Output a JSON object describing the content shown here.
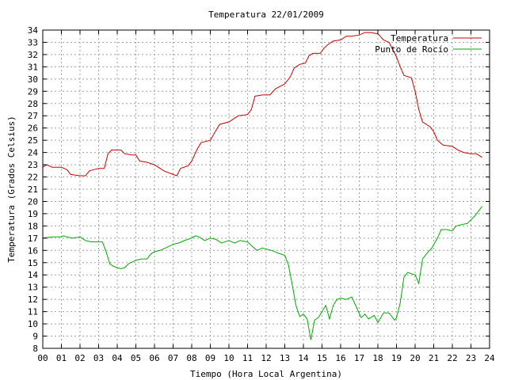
{
  "chart_data": {
    "type": "line",
    "title": "Temperatura 22/01/2009",
    "xlabel": "Tiempo (Hora Local Argentina)",
    "ylabel": "Temperatura (Grados Celsius)",
    "xlim": [
      0,
      24
    ],
    "ylim": [
      8,
      34
    ],
    "x_ticks": [
      "00",
      "01",
      "02",
      "03",
      "04",
      "05",
      "06",
      "07",
      "08",
      "09",
      "10",
      "11",
      "12",
      "13",
      "14",
      "15",
      "16",
      "17",
      "18",
      "19",
      "20",
      "21",
      "22",
      "23",
      "24"
    ],
    "y_ticks": [
      "8",
      "9",
      "10",
      "11",
      "12",
      "13",
      "14",
      "15",
      "16",
      "17",
      "18",
      "19",
      "20",
      "21",
      "22",
      "23",
      "24",
      "25",
      "26",
      "27",
      "28",
      "29",
      "30",
      "31",
      "32",
      "33",
      "34"
    ],
    "grid": true,
    "legend_position": "top-right",
    "series": [
      {
        "name": "Temperatura",
        "color": "#cc0000",
        "points": [
          [
            0.0,
            22.8
          ],
          [
            0.2,
            23.0
          ],
          [
            0.5,
            22.8
          ],
          [
            1.0,
            22.8
          ],
          [
            1.3,
            22.6
          ],
          [
            1.5,
            22.2
          ],
          [
            2.0,
            22.1
          ],
          [
            2.3,
            22.1
          ],
          [
            2.5,
            22.5
          ],
          [
            3.0,
            22.7
          ],
          [
            3.3,
            22.7
          ],
          [
            3.5,
            23.9
          ],
          [
            3.7,
            24.2
          ],
          [
            4.0,
            24.2
          ],
          [
            4.2,
            24.2
          ],
          [
            4.4,
            23.9
          ],
          [
            4.8,
            23.8
          ],
          [
            5.0,
            23.8
          ],
          [
            5.2,
            23.3
          ],
          [
            5.6,
            23.2
          ],
          [
            6.0,
            23.0
          ],
          [
            6.2,
            22.8
          ],
          [
            6.5,
            22.5
          ],
          [
            7.0,
            22.2
          ],
          [
            7.2,
            22.1
          ],
          [
            7.4,
            22.7
          ],
          [
            7.8,
            22.9
          ],
          [
            8.0,
            23.3
          ],
          [
            8.3,
            24.3
          ],
          [
            8.5,
            24.8
          ],
          [
            9.0,
            25.0
          ],
          [
            9.3,
            25.8
          ],
          [
            9.5,
            26.3
          ],
          [
            10.0,
            26.5
          ],
          [
            10.3,
            26.8
          ],
          [
            10.5,
            27.0
          ],
          [
            11.0,
            27.1
          ],
          [
            11.2,
            27.5
          ],
          [
            11.4,
            28.6
          ],
          [
            11.8,
            28.7
          ],
          [
            12.2,
            28.7
          ],
          [
            12.5,
            29.2
          ],
          [
            13.0,
            29.6
          ],
          [
            13.3,
            30.2
          ],
          [
            13.5,
            30.9
          ],
          [
            13.8,
            31.2
          ],
          [
            14.1,
            31.3
          ],
          [
            14.3,
            31.9
          ],
          [
            14.5,
            32.1
          ],
          [
            14.9,
            32.1
          ],
          [
            15.1,
            32.5
          ],
          [
            15.3,
            32.8
          ],
          [
            15.6,
            33.1
          ],
          [
            16.0,
            33.2
          ],
          [
            16.3,
            33.5
          ],
          [
            16.6,
            33.5
          ],
          [
            17.0,
            33.6
          ],
          [
            17.3,
            33.8
          ],
          [
            17.6,
            33.8
          ],
          [
            18.0,
            33.7
          ],
          [
            18.3,
            33.2
          ],
          [
            18.6,
            33.0
          ],
          [
            19.0,
            31.8
          ],
          [
            19.2,
            31.0
          ],
          [
            19.4,
            30.3
          ],
          [
            19.8,
            30.1
          ],
          [
            20.0,
            29.0
          ],
          [
            20.2,
            27.5
          ],
          [
            20.4,
            26.5
          ],
          [
            20.8,
            26.1
          ],
          [
            21.0,
            25.7
          ],
          [
            21.2,
            25.0
          ],
          [
            21.5,
            24.6
          ],
          [
            22.0,
            24.5
          ],
          [
            22.3,
            24.2
          ],
          [
            22.6,
            24.0
          ],
          [
            23.0,
            23.9
          ],
          [
            23.3,
            23.9
          ],
          [
            23.5,
            23.7
          ],
          [
            23.6,
            23.6
          ]
        ]
      },
      {
        "name": "Punto de Rocío",
        "color": "#00aa00",
        "points": [
          [
            0.0,
            17.0
          ],
          [
            0.5,
            17.1
          ],
          [
            1.0,
            17.1
          ],
          [
            1.1,
            17.2
          ],
          [
            1.3,
            17.1
          ],
          [
            1.6,
            17.0
          ],
          [
            2.0,
            17.1
          ],
          [
            2.3,
            16.8
          ],
          [
            2.6,
            16.7
          ],
          [
            3.0,
            16.7
          ],
          [
            3.2,
            16.7
          ],
          [
            3.4,
            15.9
          ],
          [
            3.6,
            14.9
          ],
          [
            3.8,
            14.7
          ],
          [
            4.0,
            14.6
          ],
          [
            4.2,
            14.5
          ],
          [
            4.4,
            14.6
          ],
          [
            4.6,
            14.9
          ],
          [
            5.0,
            15.2
          ],
          [
            5.3,
            15.3
          ],
          [
            5.6,
            15.3
          ],
          [
            5.8,
            15.7
          ],
          [
            6.0,
            15.9
          ],
          [
            6.3,
            16.0
          ],
          [
            6.6,
            16.2
          ],
          [
            7.0,
            16.5
          ],
          [
            7.3,
            16.6
          ],
          [
            7.6,
            16.8
          ],
          [
            8.0,
            17.0
          ],
          [
            8.2,
            17.2
          ],
          [
            8.4,
            17.1
          ],
          [
            8.7,
            16.8
          ],
          [
            9.0,
            17.0
          ],
          [
            9.3,
            16.9
          ],
          [
            9.6,
            16.6
          ],
          [
            10.0,
            16.8
          ],
          [
            10.3,
            16.6
          ],
          [
            10.6,
            16.8
          ],
          [
            11.0,
            16.7
          ],
          [
            11.2,
            16.4
          ],
          [
            11.5,
            16.0
          ],
          [
            11.8,
            16.2
          ],
          [
            12.0,
            16.1
          ],
          [
            12.3,
            16.0
          ],
          [
            12.6,
            15.8
          ],
          [
            13.0,
            15.6
          ],
          [
            13.2,
            14.8
          ],
          [
            13.4,
            13.2
          ],
          [
            13.6,
            11.5
          ],
          [
            13.8,
            10.6
          ],
          [
            14.0,
            10.8
          ],
          [
            14.2,
            10.4
          ],
          [
            14.4,
            8.7
          ],
          [
            14.6,
            10.3
          ],
          [
            14.8,
            10.5
          ],
          [
            15.0,
            11.0
          ],
          [
            15.2,
            11.5
          ],
          [
            15.4,
            10.4
          ],
          [
            15.6,
            11.5
          ],
          [
            15.8,
            12.0
          ],
          [
            16.0,
            12.1
          ],
          [
            16.3,
            12.0
          ],
          [
            16.6,
            12.2
          ],
          [
            16.9,
            11.2
          ],
          [
            17.1,
            10.5
          ],
          [
            17.3,
            10.8
          ],
          [
            17.5,
            10.4
          ],
          [
            17.8,
            10.7
          ],
          [
            18.0,
            10.1
          ],
          [
            18.3,
            10.9
          ],
          [
            18.6,
            10.9
          ],
          [
            18.9,
            10.3
          ],
          [
            19.0,
            10.5
          ],
          [
            19.2,
            11.7
          ],
          [
            19.4,
            13.8
          ],
          [
            19.6,
            14.2
          ],
          [
            19.8,
            14.1
          ],
          [
            20.0,
            14.0
          ],
          [
            20.2,
            13.3
          ],
          [
            20.4,
            15.3
          ],
          [
            20.6,
            15.7
          ],
          [
            20.9,
            16.2
          ],
          [
            21.2,
            17.0
          ],
          [
            21.4,
            17.7
          ],
          [
            21.7,
            17.7
          ],
          [
            22.0,
            17.6
          ],
          [
            22.2,
            18.0
          ],
          [
            22.5,
            18.1
          ],
          [
            22.8,
            18.2
          ],
          [
            23.0,
            18.5
          ],
          [
            23.2,
            18.8
          ],
          [
            23.4,
            19.2
          ],
          [
            23.6,
            19.6
          ]
        ]
      }
    ]
  }
}
